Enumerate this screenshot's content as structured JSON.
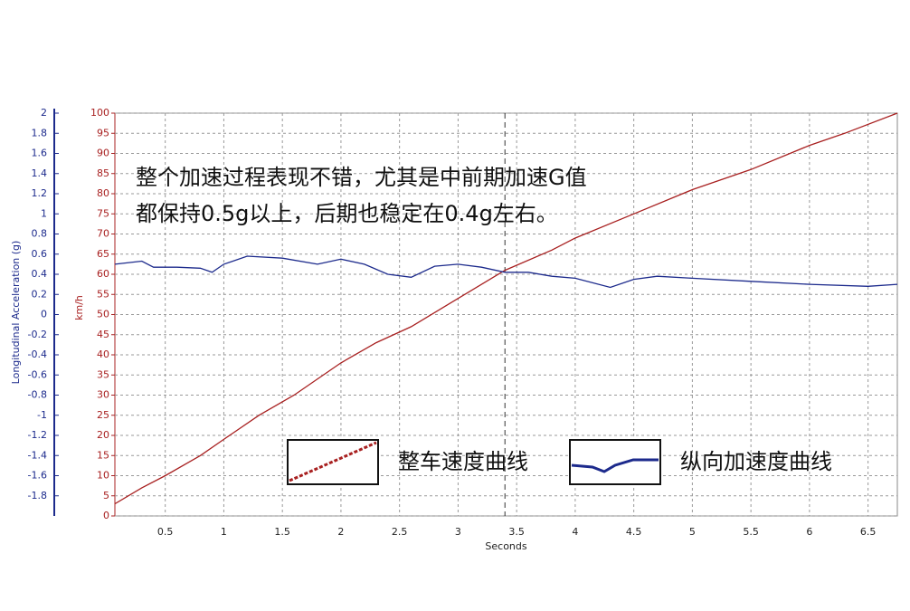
{
  "chart_data": {
    "type": "line",
    "annotations": [
      "整个加速过程表现不错，尤其是中前期加速G值",
      "都保持0.5g以上，后期也稳定在0.4g左右。"
    ],
    "xlabel": "Seconds",
    "ylabel": "km/h",
    "y2label": "Longitudinal Acceleration (g)",
    "xlim": [
      0.07,
      6.75
    ],
    "xticks": [
      0.5,
      1,
      1.5,
      2,
      2.5,
      3,
      3.5,
      4,
      4.5,
      5,
      5.5,
      6,
      6.5
    ],
    "ylim": [
      0,
      100
    ],
    "yticks": [
      0,
      5,
      10,
      15,
      20,
      25,
      30,
      35,
      40,
      45,
      50,
      55,
      60,
      65,
      70,
      75,
      80,
      85,
      90,
      95,
      100
    ],
    "y2lim": [
      -2,
      2
    ],
    "y2ticks": [
      -1.8,
      -1.6,
      -1.4,
      -1.2,
      -1,
      -0.8,
      -0.6,
      -0.4,
      -0.2,
      0,
      0.2,
      0.4,
      0.6,
      0.8,
      1,
      1.2,
      1.4,
      1.6,
      1.8,
      2
    ],
    "grid": true,
    "cursor_x": 3.4,
    "series": [
      {
        "name": "整车速度曲线",
        "color": "#a82020",
        "x": [
          0.07,
          0.3,
          0.5,
          0.8,
          1,
          1.3,
          1.6,
          2,
          2.3,
          2.6,
          3,
          3.4,
          3.8,
          4,
          4.5,
          5,
          5.5,
          6,
          6.3,
          6.75
        ],
        "values": [
          3,
          7,
          10,
          15,
          19,
          25,
          30,
          38,
          43,
          47,
          54,
          61,
          66,
          69,
          75,
          81,
          86,
          92,
          95,
          100
        ]
      },
      {
        "name": "纵向加速度曲线",
        "color": "#1c2a8c",
        "axis": "y2",
        "x": [
          0.07,
          0.3,
          0.4,
          0.6,
          0.8,
          0.9,
          1,
          1.2,
          1.5,
          1.8,
          2,
          2.2,
          2.4,
          2.6,
          2.8,
          3,
          3.2,
          3.4,
          3.6,
          3.8,
          4,
          4.3,
          4.5,
          4.7,
          5,
          5.5,
          6,
          6.5,
          6.75
        ],
        "values": [
          0.5,
          0.53,
          0.47,
          0.47,
          0.46,
          0.42,
          0.5,
          0.58,
          0.56,
          0.5,
          0.55,
          0.5,
          0.4,
          0.37,
          0.48,
          0.5,
          0.47,
          0.42,
          0.42,
          0.38,
          0.36,
          0.27,
          0.35,
          0.38,
          0.36,
          0.33,
          0.3,
          0.28,
          0.3
        ]
      }
    ]
  }
}
